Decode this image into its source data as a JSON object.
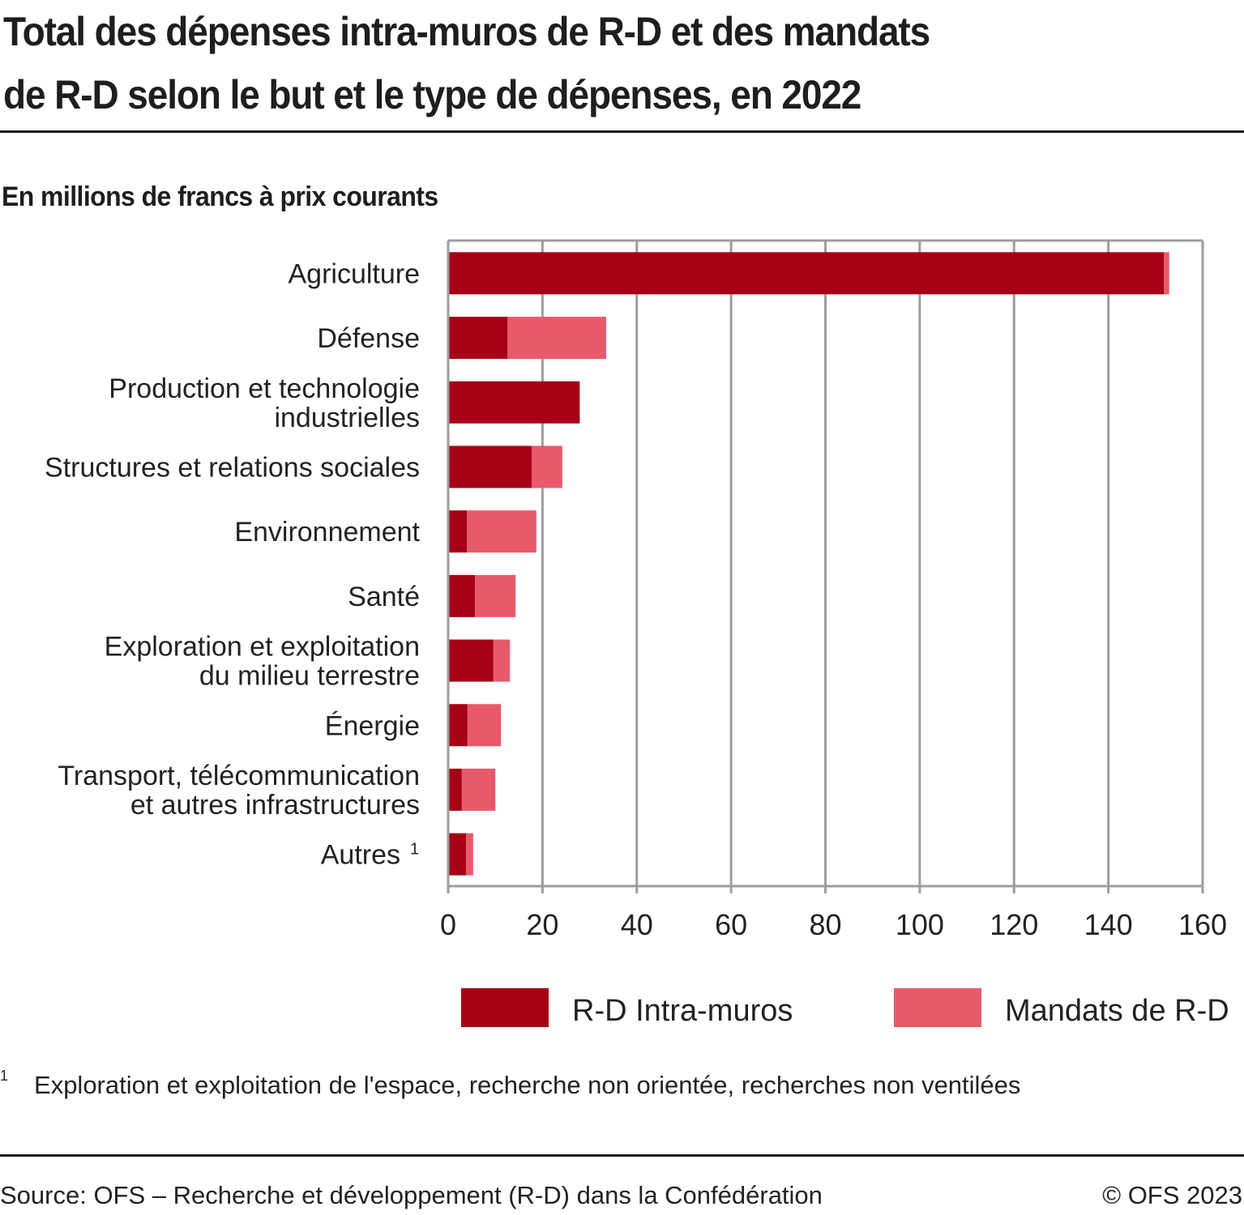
{
  "header": {
    "title_line1": "Total des dépenses intra-muros de R-D et des mandats",
    "title_line2": "de R-D selon le but et le type de dépenses, en 2022",
    "subtitle": "En millions de francs à prix courants"
  },
  "chart_data": {
    "type": "bar",
    "orientation": "horizontal",
    "stacked": true,
    "title": "Total des dépenses intra-muros de R-D et des mandats de R-D selon le but et le type de dépenses, en 2022",
    "subtitle": "En millions de francs à prix courants",
    "xlabel": "",
    "ylabel": "",
    "xlim": [
      0,
      160
    ],
    "xticks": [
      0,
      20,
      40,
      60,
      80,
      100,
      120,
      140,
      160
    ],
    "grid": true,
    "legend_position": "bottom",
    "categories": [
      [
        "Agriculture"
      ],
      [
        "Défense"
      ],
      [
        "Production et technologie",
        "industrielles"
      ],
      [
        "Structures et relations sociales"
      ],
      [
        "Environnement"
      ],
      [
        "Santé"
      ],
      [
        "Exploration et exploitation",
        "du milieu terrestre"
      ],
      [
        "Énergie"
      ],
      [
        "Transport, télécommunication",
        "et autres infrastructures"
      ],
      [
        "Autres"
      ]
    ],
    "category_footnotes": [
      "",
      "",
      "",
      "",
      "",
      "",
      "",
      "",
      "",
      "1"
    ],
    "series": [
      {
        "name": "R-D Intra-muros",
        "color": "#a50015",
        "values": [
          151.8,
          12.6,
          27.9,
          17.7,
          4.0,
          5.7,
          9.6,
          4.1,
          2.9,
          3.8
        ]
      },
      {
        "name": "Mandats de R-D",
        "color": "#e8596b",
        "values": [
          1.1,
          20.9,
          0.0,
          6.5,
          14.7,
          8.6,
          3.5,
          7.1,
          7.1,
          1.5
        ]
      }
    ]
  },
  "footnote": {
    "marker": "1",
    "text": "Exploration et exploitation de l'espace, recherche non orientée, recherches non ventilées"
  },
  "footer": {
    "source": "Source: OFS – Recherche et développement (R-D) dans la Confédération",
    "copyright": "© OFS 2023"
  },
  "colors": {
    "grid": "#9d9d9d",
    "text": "#1e1e1e"
  }
}
